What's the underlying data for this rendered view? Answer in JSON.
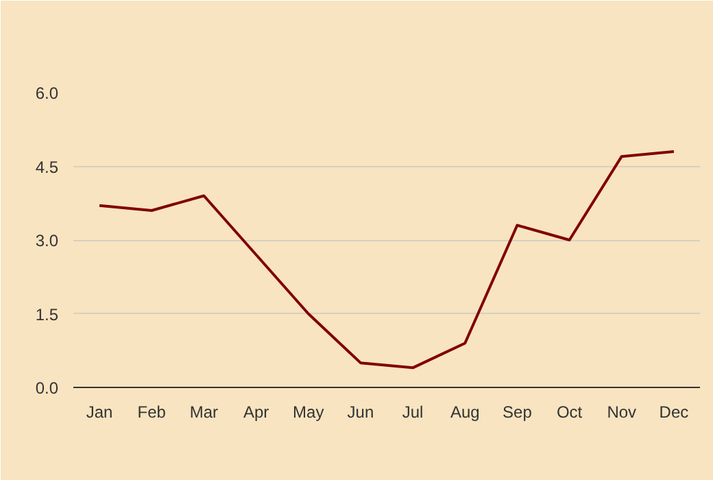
{
  "chart_data": {
    "type": "line",
    "categories": [
      "Jan",
      "Feb",
      "Mar",
      "Apr",
      "May",
      "Jun",
      "Jul",
      "Aug",
      "Sep",
      "Oct",
      "Nov",
      "Dec"
    ],
    "series": [
      {
        "color": "#800000",
        "values": [
          3.7,
          3.6,
          3.9,
          2.7,
          1.5,
          0.5,
          0.4,
          0.9,
          3.3,
          3.0,
          4.7,
          4.8
        ]
      }
    ],
    "ylim": [
      0,
      6
    ],
    "yticks": [
      {
        "value": 0,
        "label": "0.0"
      },
      {
        "value": 1.5,
        "label": "1.5"
      },
      {
        "value": 3,
        "label": "3.0"
      },
      {
        "value": 4.5,
        "label": "4.5"
      },
      {
        "value": 6,
        "label": "6.0"
      }
    ],
    "grid": "y",
    "marker": "none",
    "line_style": "solid"
  }
}
